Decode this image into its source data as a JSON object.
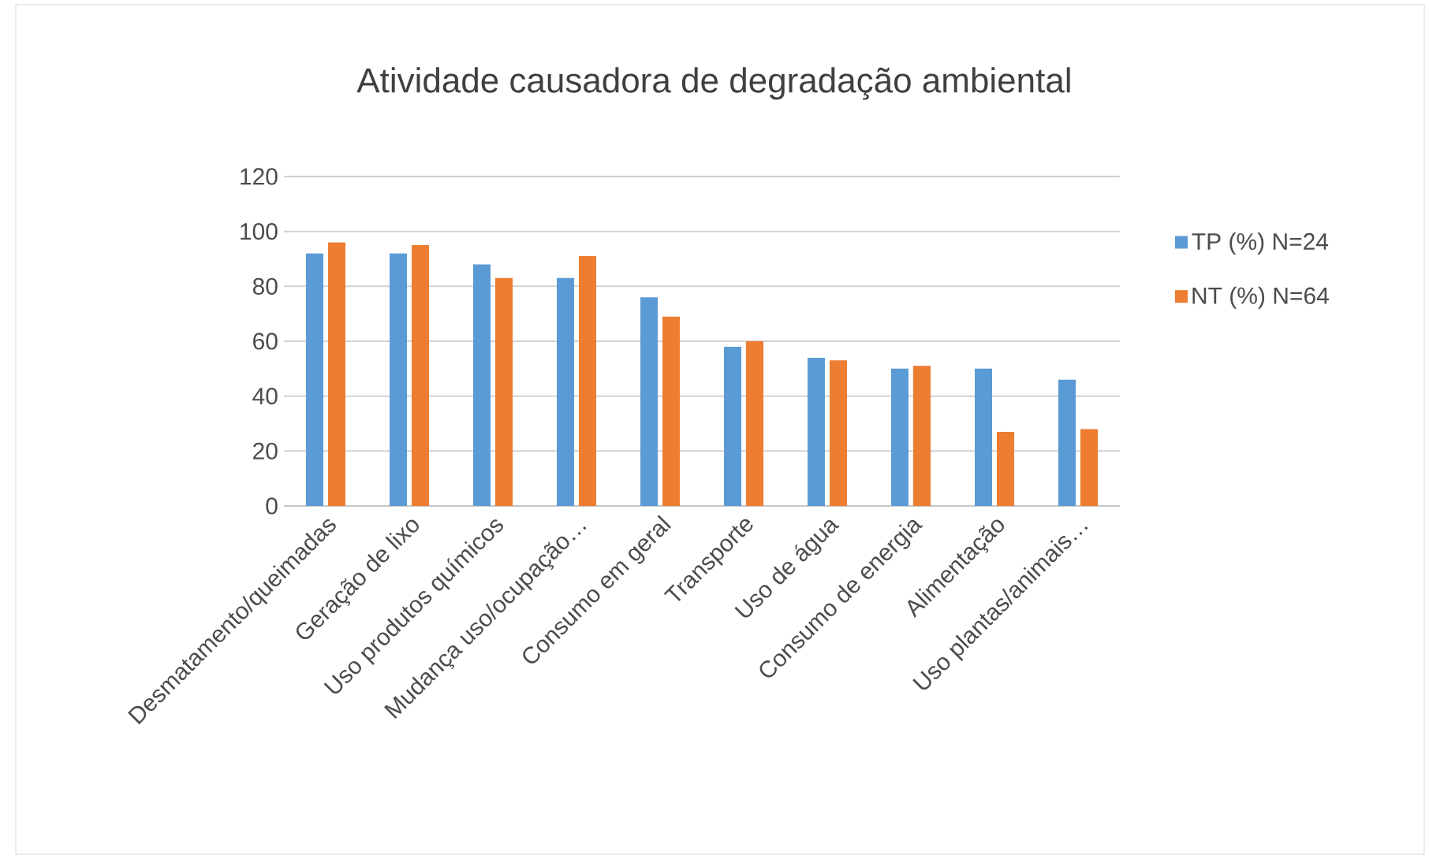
{
  "chart_data": {
    "type": "bar",
    "title": "Atividade causadora de degradação ambiental",
    "categories": [
      "Desmatamento/queimadas",
      "Geração de lixo",
      "Uso produtos químicos",
      "Mudança uso/ocupação…",
      "Consumo em geral",
      "Transporte",
      "Uso de água",
      "Consumo de energia",
      "Alimentação",
      "Uso plantas/animais…"
    ],
    "series": [
      {
        "name": "TP (%) N=24",
        "color": "#5b9bd5",
        "values": [
          92,
          92,
          88,
          83,
          76,
          58,
          54,
          50,
          50,
          46
        ]
      },
      {
        "name": "NT (%) N=64",
        "color": "#ed7d31",
        "values": [
          96,
          95,
          83,
          91,
          69,
          60,
          53,
          51,
          27,
          28
        ]
      }
    ],
    "ylim": [
      0,
      120
    ],
    "yticks": [
      0,
      20,
      40,
      60,
      80,
      100,
      120
    ],
    "grid": "y",
    "legend": "right"
  }
}
